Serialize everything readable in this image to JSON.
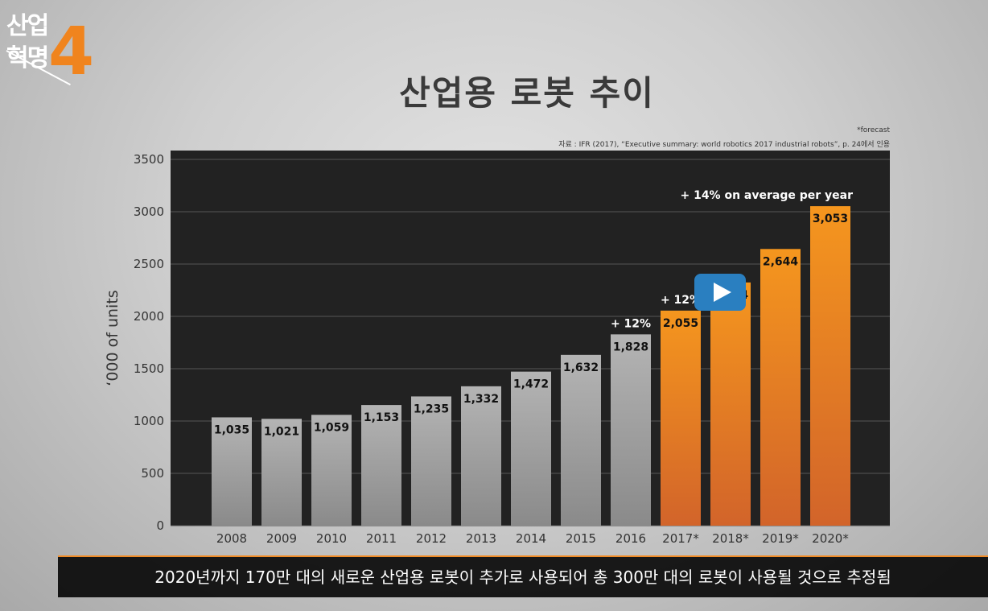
{
  "logo": {
    "line1": "산업",
    "line2": "혁명",
    "number": "4"
  },
  "title": "산업용 로봇 추이",
  "notes": {
    "forecast": "*forecast",
    "source": "자료 : IFR (2017), “Executive summary: world robotics 2017 industrial robots”, p. 24에서 인용"
  },
  "subtitle": "2020년까지 170만 대의 새로운 산업용 로봇이 추가로 사용되어 총 300만 대의 로봇이 사용될 것으로 추정됨",
  "colors": {
    "plot_bg": "#222222",
    "actual_top": "#b4b4b4",
    "actual_bottom": "#8a8a8a",
    "forecast_top": "#f5961e",
    "forecast_bottom": "#d2642a",
    "play_button": "#2a7fc0"
  },
  "chart_data": {
    "type": "bar",
    "ylabel": "‘000 of units",
    "ylim": [
      0,
      3500
    ],
    "yticks": [
      0,
      500,
      1000,
      1500,
      2000,
      2500,
      3000,
      3500
    ],
    "grid": true,
    "categories": [
      "2008",
      "2009",
      "2010",
      "2011",
      "2012",
      "2013",
      "2014",
      "2015",
      "2016",
      "2017*",
      "2018*",
      "2019*",
      "2020*"
    ],
    "values": [
      1035,
      1021,
      1059,
      1153,
      1235,
      1332,
      1472,
      1632,
      1828,
      2055,
      2324,
      2644,
      3053
    ],
    "value_labels": [
      "1,035",
      "1,021",
      "1,059",
      "1,153",
      "1,235",
      "1,332",
      "1,472",
      "1,632",
      "1,828",
      "2,055",
      "2,324",
      "2,644",
      "3,053"
    ],
    "forecast_flags": [
      false,
      false,
      false,
      false,
      false,
      false,
      false,
      false,
      false,
      true,
      true,
      true,
      true
    ],
    "annotations": [
      {
        "category": "2016",
        "text": "+ 12%"
      },
      {
        "category": "2017*",
        "text": "+ 12%"
      },
      {
        "category": "2020*",
        "text": "+ 14% on average per year"
      }
    ]
  }
}
